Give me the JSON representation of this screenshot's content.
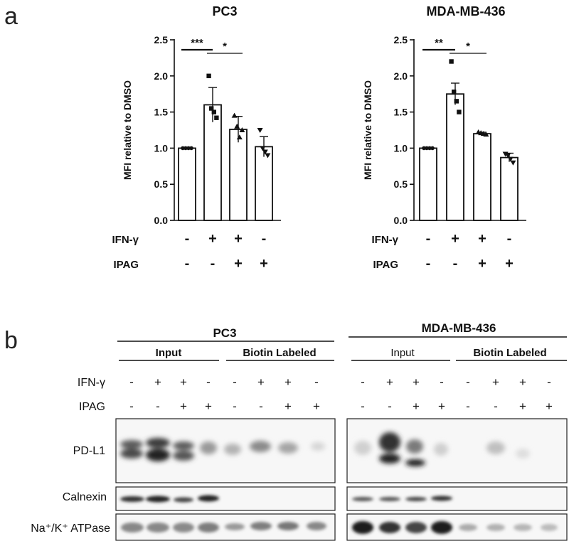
{
  "panel_a": {
    "letter": "a",
    "row_labels": {
      "ifn": "IFN-γ",
      "ipag": "IPAG"
    },
    "ifn_signs": [
      "-",
      "+",
      "+",
      "-"
    ],
    "ipag_signs": [
      "-",
      "-",
      "+",
      "+"
    ]
  },
  "panel_b": {
    "letter": "b",
    "sub_input": "Input",
    "sub_biotin": "Biotin Labeled",
    "row_ifn": "IFN-γ",
    "row_ipag": "IPAG",
    "ifn_signs": [
      "-",
      "+",
      "+",
      "-",
      "-",
      "+",
      "+",
      "-"
    ],
    "ipag_signs": [
      "-",
      "-",
      "+",
      "+",
      "-",
      "-",
      "+",
      "+"
    ],
    "bands": [
      "PD-L1",
      "Calnexin",
      "Na⁺/K⁺ ATPase"
    ],
    "cell_lines": [
      "PC3",
      "MDA-MB-436"
    ]
  },
  "chart_data": [
    {
      "type": "bar",
      "title": "PC3",
      "ylabel": "MFI relative to DMSO",
      "ylim": [
        0,
        2.5
      ],
      "yticks": [
        "0.0",
        "0.5",
        "1.0",
        "1.5",
        "2.0",
        "2.5"
      ],
      "categories": [
        "-/-",
        "+/-",
        "+/+",
        "-/+"
      ],
      "values": [
        1.0,
        1.6,
        1.26,
        1.02
      ],
      "errors": [
        0.0,
        0.24,
        0.18,
        0.14
      ],
      "points": [
        [
          1.0,
          1.0,
          1.0,
          1.0
        ],
        [
          2.0,
          1.55,
          1.5,
          1.42
        ],
        [
          1.45,
          1.3,
          1.15,
          1.25
        ],
        [
          1.25,
          1.0,
          0.95,
          0.9
        ]
      ],
      "markers": [
        "circle",
        "square",
        "triangle",
        "triangle-down"
      ],
      "significance": [
        {
          "from": 0,
          "to": 1,
          "label": "***"
        },
        {
          "from": 1,
          "to": 2,
          "label": "*"
        }
      ]
    },
    {
      "type": "bar",
      "title": "MDA-MB-436",
      "ylabel": "MFI relative to DMSO",
      "ylim": [
        0,
        2.5
      ],
      "yticks": [
        "0.0",
        "0.5",
        "1.0",
        "1.5",
        "2.0",
        "2.5"
      ],
      "categories": [
        "-/-",
        "+/-",
        "+/+",
        "-/+"
      ],
      "values": [
        1.0,
        1.75,
        1.2,
        0.87
      ],
      "errors": [
        0.0,
        0.15,
        0.02,
        0.06
      ],
      "points": [
        [
          1.0,
          1.0,
          1.0,
          1.0
        ],
        [
          2.2,
          1.78,
          1.65,
          1.5
        ],
        [
          1.22,
          1.21,
          1.2,
          1.19
        ],
        [
          0.92,
          0.9,
          0.85,
          0.8
        ]
      ],
      "markers": [
        "circle",
        "square",
        "triangle",
        "triangle-down"
      ],
      "significance": [
        {
          "from": 0,
          "to": 1,
          "label": "**"
        },
        {
          "from": 1,
          "to": 2,
          "label": "*"
        }
      ]
    }
  ]
}
